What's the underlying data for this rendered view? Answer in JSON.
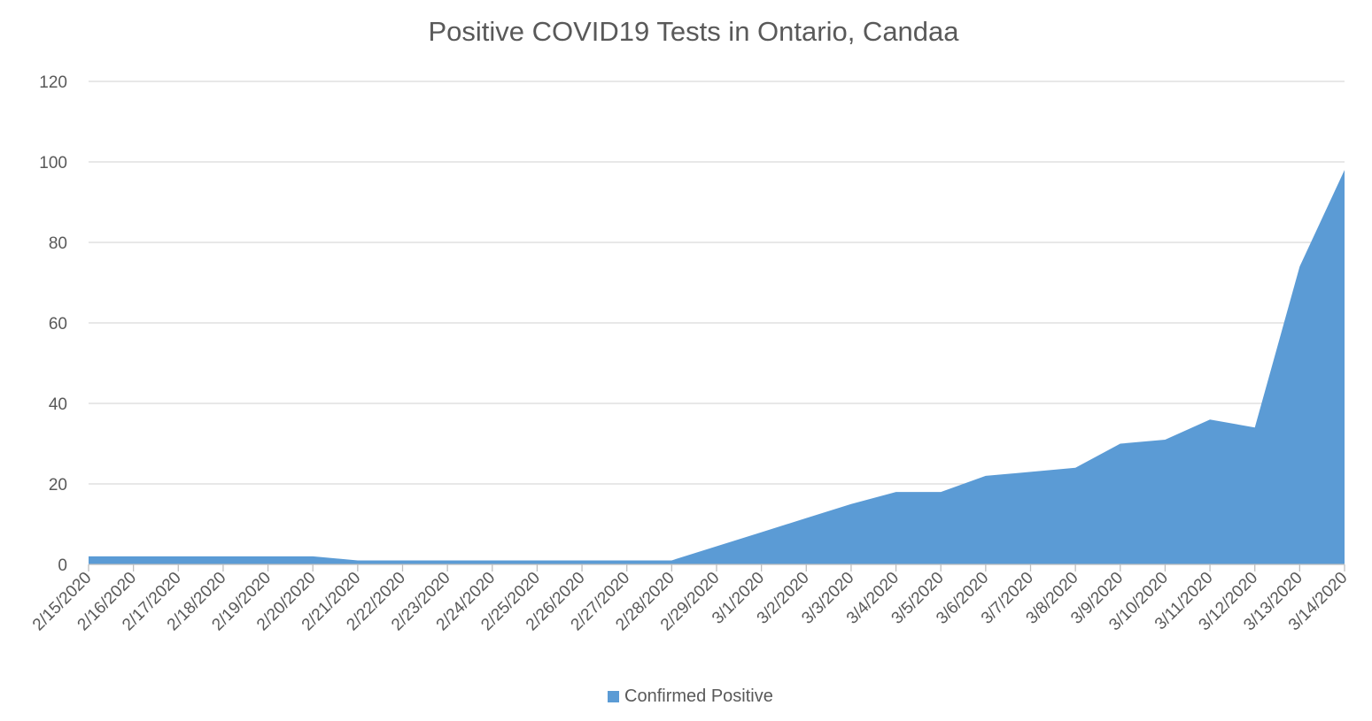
{
  "chart_data": {
    "type": "area",
    "title": "Positive COVID19 Tests in Ontario, Candaa",
    "categories": [
      "2/15/2020",
      "2/16/2020",
      "2/17/2020",
      "2/18/2020",
      "2/19/2020",
      "2/20/2020",
      "2/21/2020",
      "2/22/2020",
      "2/23/2020",
      "2/24/2020",
      "2/25/2020",
      "2/26/2020",
      "2/27/2020",
      "2/28/2020",
      "2/29/2020",
      "3/1/2020",
      "3/2/2020",
      "3/3/2020",
      "3/4/2020",
      "3/5/2020",
      "3/6/2020",
      "3/7/2020",
      "3/8/2020",
      "3/9/2020",
      "3/10/2020",
      "3/11/2020",
      "3/12/2020",
      "3/13/2020",
      "3/14/2020"
    ],
    "series": [
      {
        "name": "Confirmed Positive",
        "color": "#5b9bd5",
        "values": [
          2,
          2,
          2,
          2,
          2,
          2,
          1,
          1,
          1,
          1,
          1,
          1,
          1,
          1,
          4.5,
          8,
          11.5,
          15,
          18,
          18,
          22,
          23,
          24,
          30,
          31,
          36,
          34,
          74,
          98
        ]
      }
    ],
    "y_ticks": [
      "0",
      "20",
      "40",
      "60",
      "80",
      "100",
      "120"
    ],
    "ylim": [
      0,
      120
    ],
    "grid": true,
    "legend_position": "bottom"
  }
}
